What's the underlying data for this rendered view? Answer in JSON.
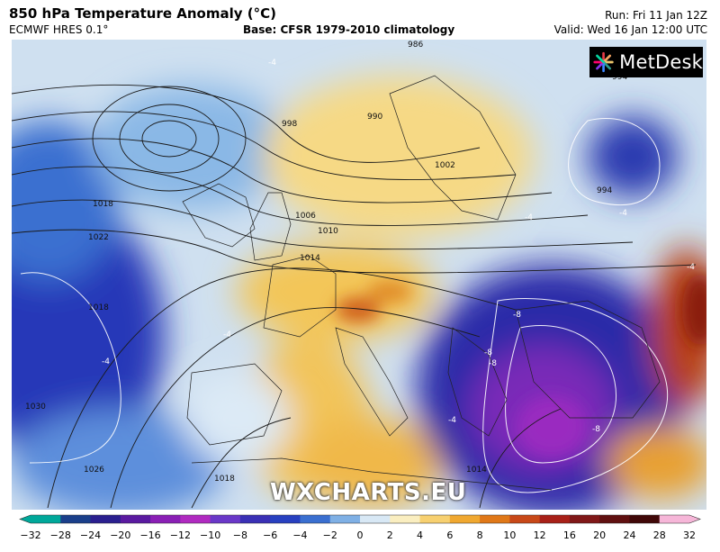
{
  "header": {
    "title": "850 hPa Temperature Anomaly (°C)",
    "model": "ECMWF HRES 0.1°",
    "base": "Base: CFSR 1979-2010 climatology",
    "run": "Run: Fri 11 Jan 12Z",
    "valid": "Valid: Wed 16 Jan 12:00 UTC"
  },
  "logo": {
    "text": "MetDesk"
  },
  "watermark": "WXCHARTS.EU",
  "isobar_labels": [
    "986",
    "994",
    "990",
    "998",
    "1002",
    "994",
    "1006",
    "1010",
    "1014",
    "1018",
    "1022",
    "1030",
    "1026",
    "1018",
    "1014",
    "1018"
  ],
  "anomaly_labels": [
    "-4",
    "-4",
    "-4",
    "-4",
    "-4",
    "-8",
    "-8",
    "-8",
    "-8",
    "-4",
    "-4"
  ],
  "colorbar": {
    "ticks": [
      "−32",
      "−28",
      "−24",
      "−20",
      "−16",
      "−12",
      "−10",
      "−8",
      "−6",
      "−4",
      "−2",
      "0",
      "2",
      "4",
      "6",
      "8",
      "10",
      "12",
      "16",
      "20",
      "24",
      "28",
      "32"
    ],
    "colors": [
      "#00a89a",
      "#1a3f8a",
      "#2a1f8f",
      "#5a1aa0",
      "#8a1fb5",
      "#b02ac0",
      "#6a38c8",
      "#3a30b5",
      "#2840c0",
      "#3a6fd0",
      "#7fb0e5",
      "#d8e8f5",
      "#faeec0",
      "#f7d070",
      "#f0a830",
      "#e07818",
      "#c84818",
      "#a82018",
      "#801818",
      "#601010",
      "#400808",
      "#f6b6d8"
    ]
  },
  "colors": {
    "deep_cold": "#2a1f8f",
    "cold": "#3a6fd0",
    "neutral": "#eef3f8",
    "warm": "#f5c24a",
    "hot": "#c8481a"
  }
}
